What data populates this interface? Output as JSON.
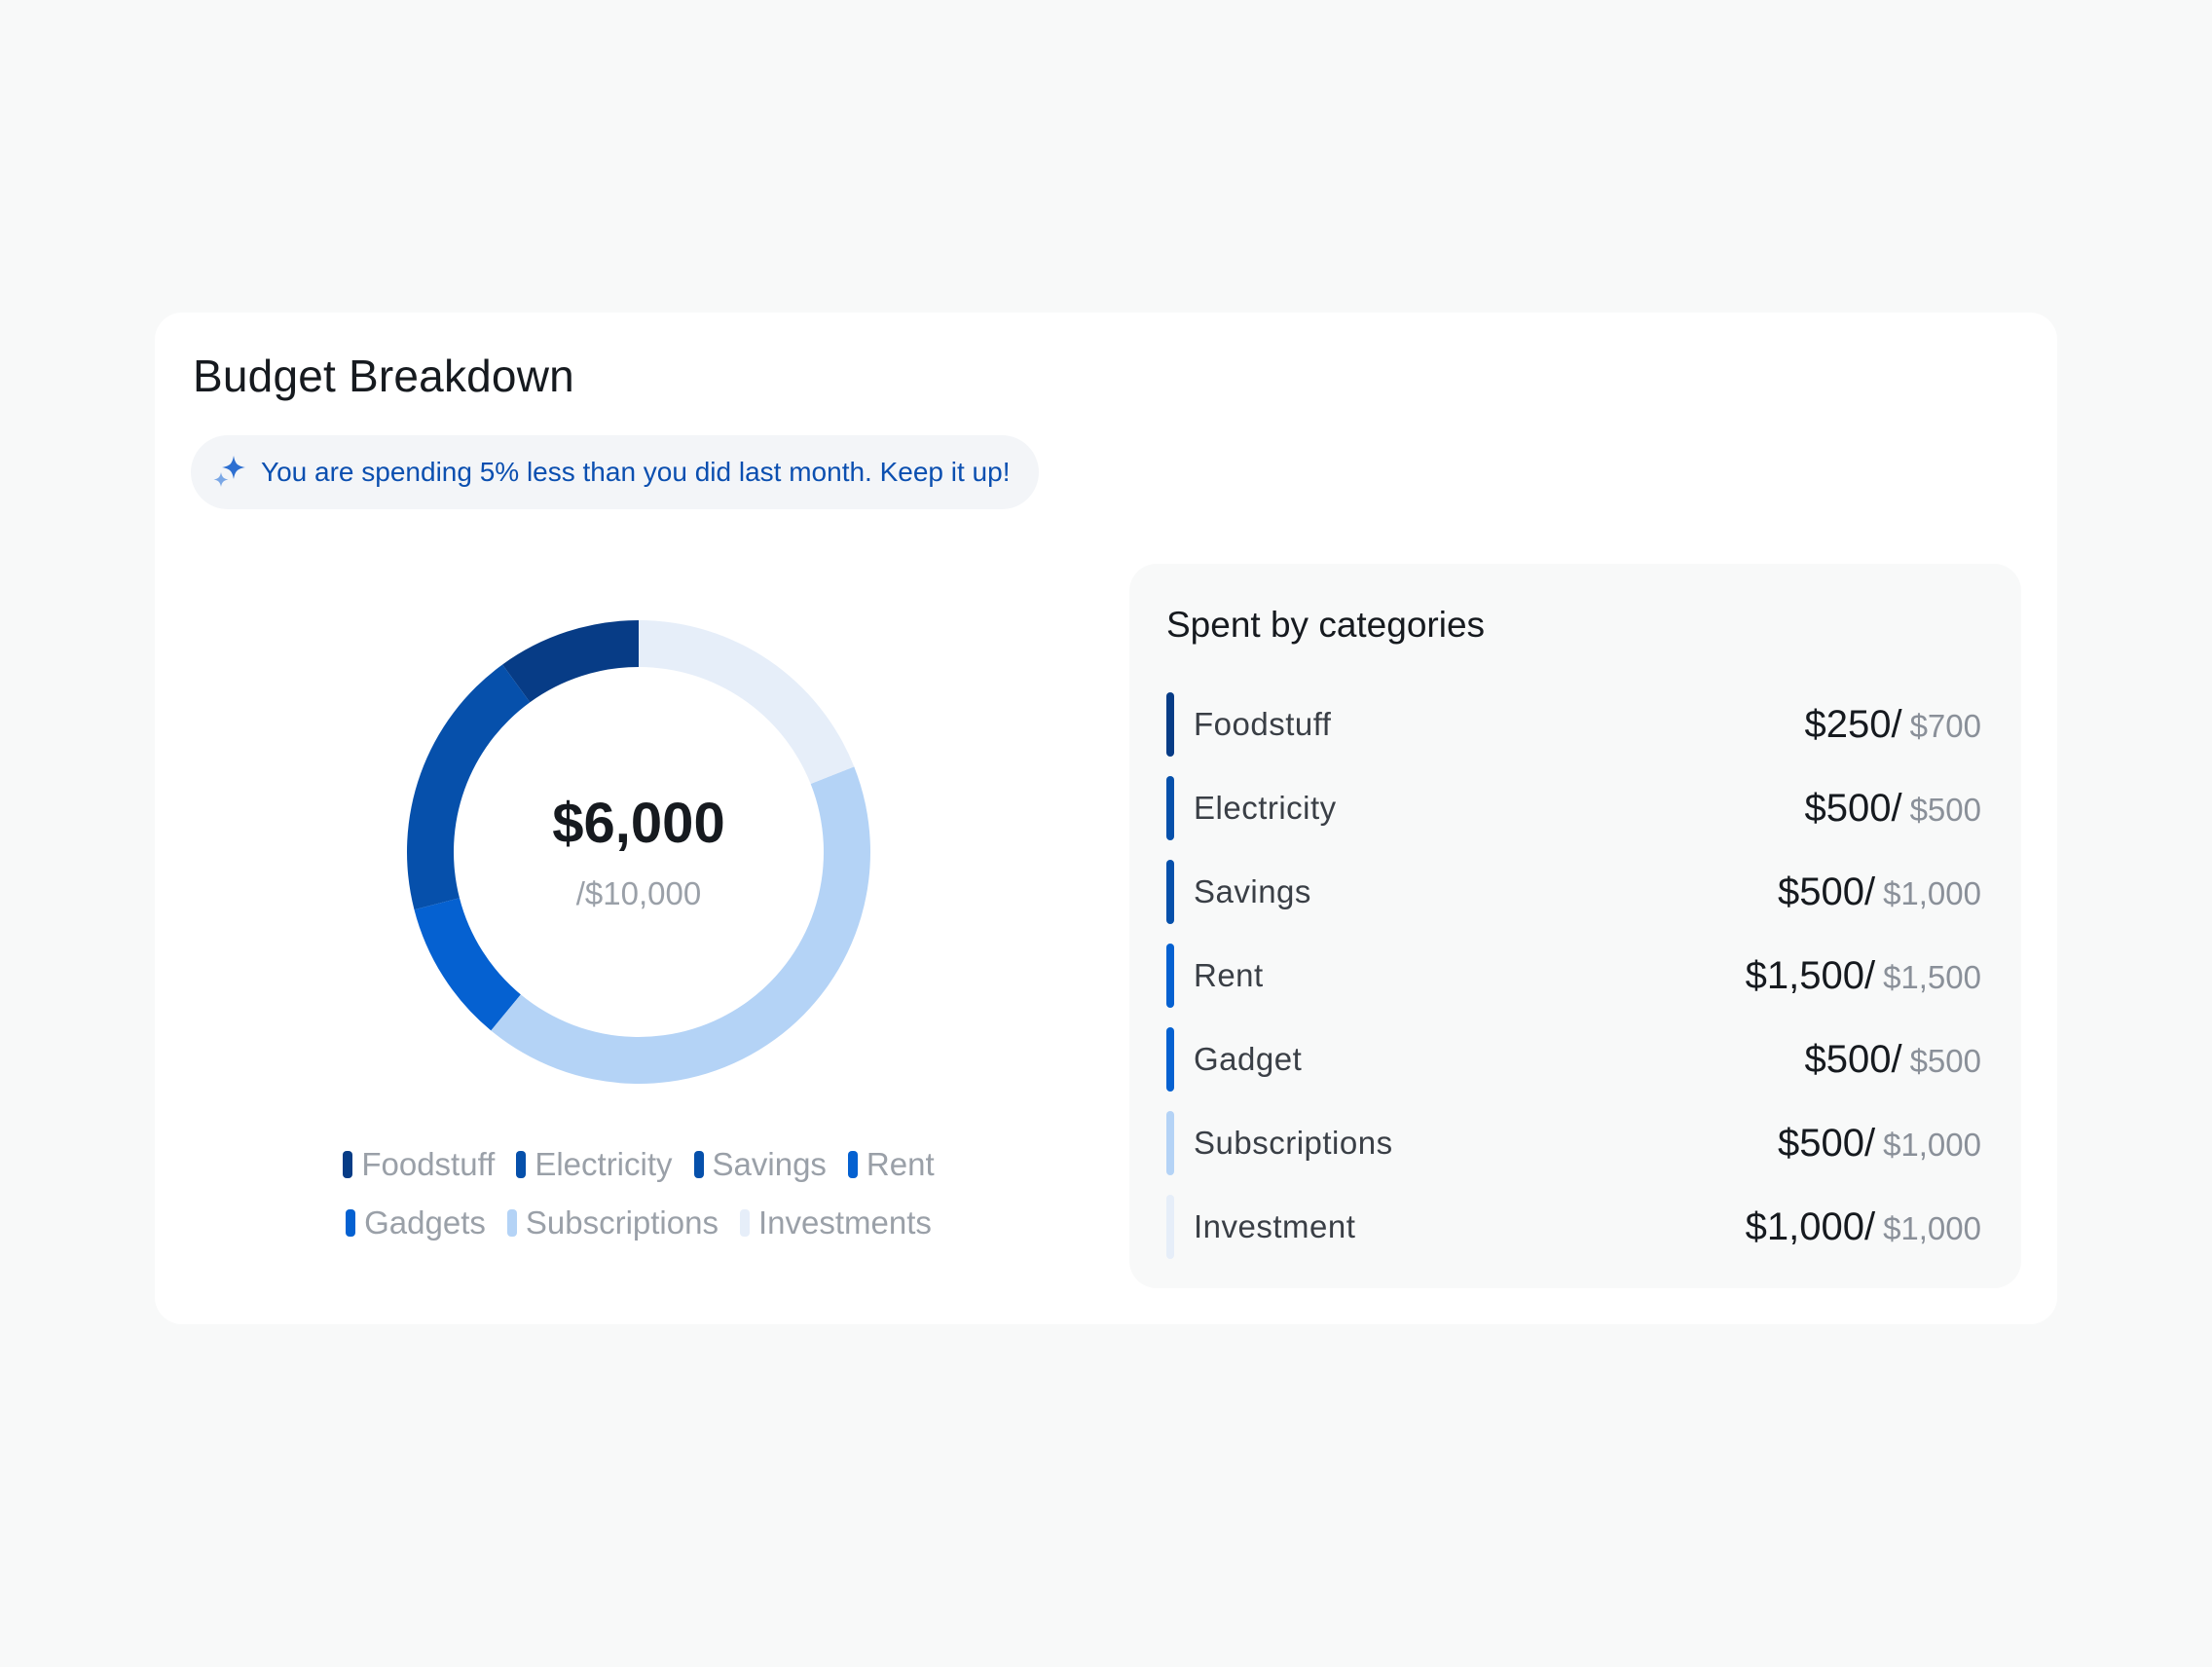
{
  "header": {
    "title": "Budget Breakdown"
  },
  "banner": {
    "icon": "sparkle-icon",
    "text": "You are spending 5% less than you did last month. Keep it up!"
  },
  "summary": {
    "spent": "$6,000",
    "budget": "/$10,000"
  },
  "colors": {
    "foodstuff": "#073c86",
    "electricity": "#0650ab",
    "savings": "#0650ab",
    "rent": "#0561d1",
    "gadgets": "#0561d1",
    "subscriptions": "#b4d3f6",
    "investments": "#e6eef9"
  },
  "chart_data": {
    "type": "pie",
    "title": "",
    "segments": [
      {
        "name": "Foodstuff",
        "value": 10,
        "color": "#073c86"
      },
      {
        "name": "Electricity",
        "value": 19,
        "color": "#0650ab"
      },
      {
        "name": "Rent",
        "value": 10,
        "color": "#0561d1"
      },
      {
        "name": "Subscriptions",
        "value": 42,
        "color": "#b4d3f6"
      },
      {
        "name": "Investments",
        "value": 19,
        "color": "#e6eef9"
      }
    ]
  },
  "legend": {
    "rows": [
      [
        {
          "label": "Foodstuff",
          "color": "#073c86"
        },
        {
          "label": "Electricity",
          "color": "#0650ab"
        },
        {
          "label": "Savings",
          "color": "#0650ab"
        },
        {
          "label": "Rent",
          "color": "#0561d1"
        }
      ],
      [
        {
          "label": "Gadgets",
          "color": "#0561d1"
        },
        {
          "label": "Subscriptions",
          "color": "#b4d3f6"
        },
        {
          "label": "Investments",
          "color": "#e6eef9"
        }
      ]
    ]
  },
  "categories": {
    "title": "Spent by categories",
    "items": [
      {
        "label": "Foodstuff",
        "spent": "$250/",
        "limit": "$700",
        "color": "#073c86"
      },
      {
        "label": "Electricity",
        "spent": "$500/",
        "limit": "$500",
        "color": "#0650ab"
      },
      {
        "label": "Savings",
        "spent": "$500/",
        "limit": "$1,000",
        "color": "#0650ab"
      },
      {
        "label": "Rent",
        "spent": "$1,500/",
        "limit": "$1,500",
        "color": "#0561d1"
      },
      {
        "label": "Gadget",
        "spent": "$500/",
        "limit": "$500",
        "color": "#0561d1"
      },
      {
        "label": "Subscriptions",
        "spent": "$500/",
        "limit": "$1,000",
        "color": "#b4d3f6"
      },
      {
        "label": "Investment",
        "spent": "$1,000/",
        "limit": "$1,000",
        "color": "#e6eef9"
      }
    ]
  }
}
